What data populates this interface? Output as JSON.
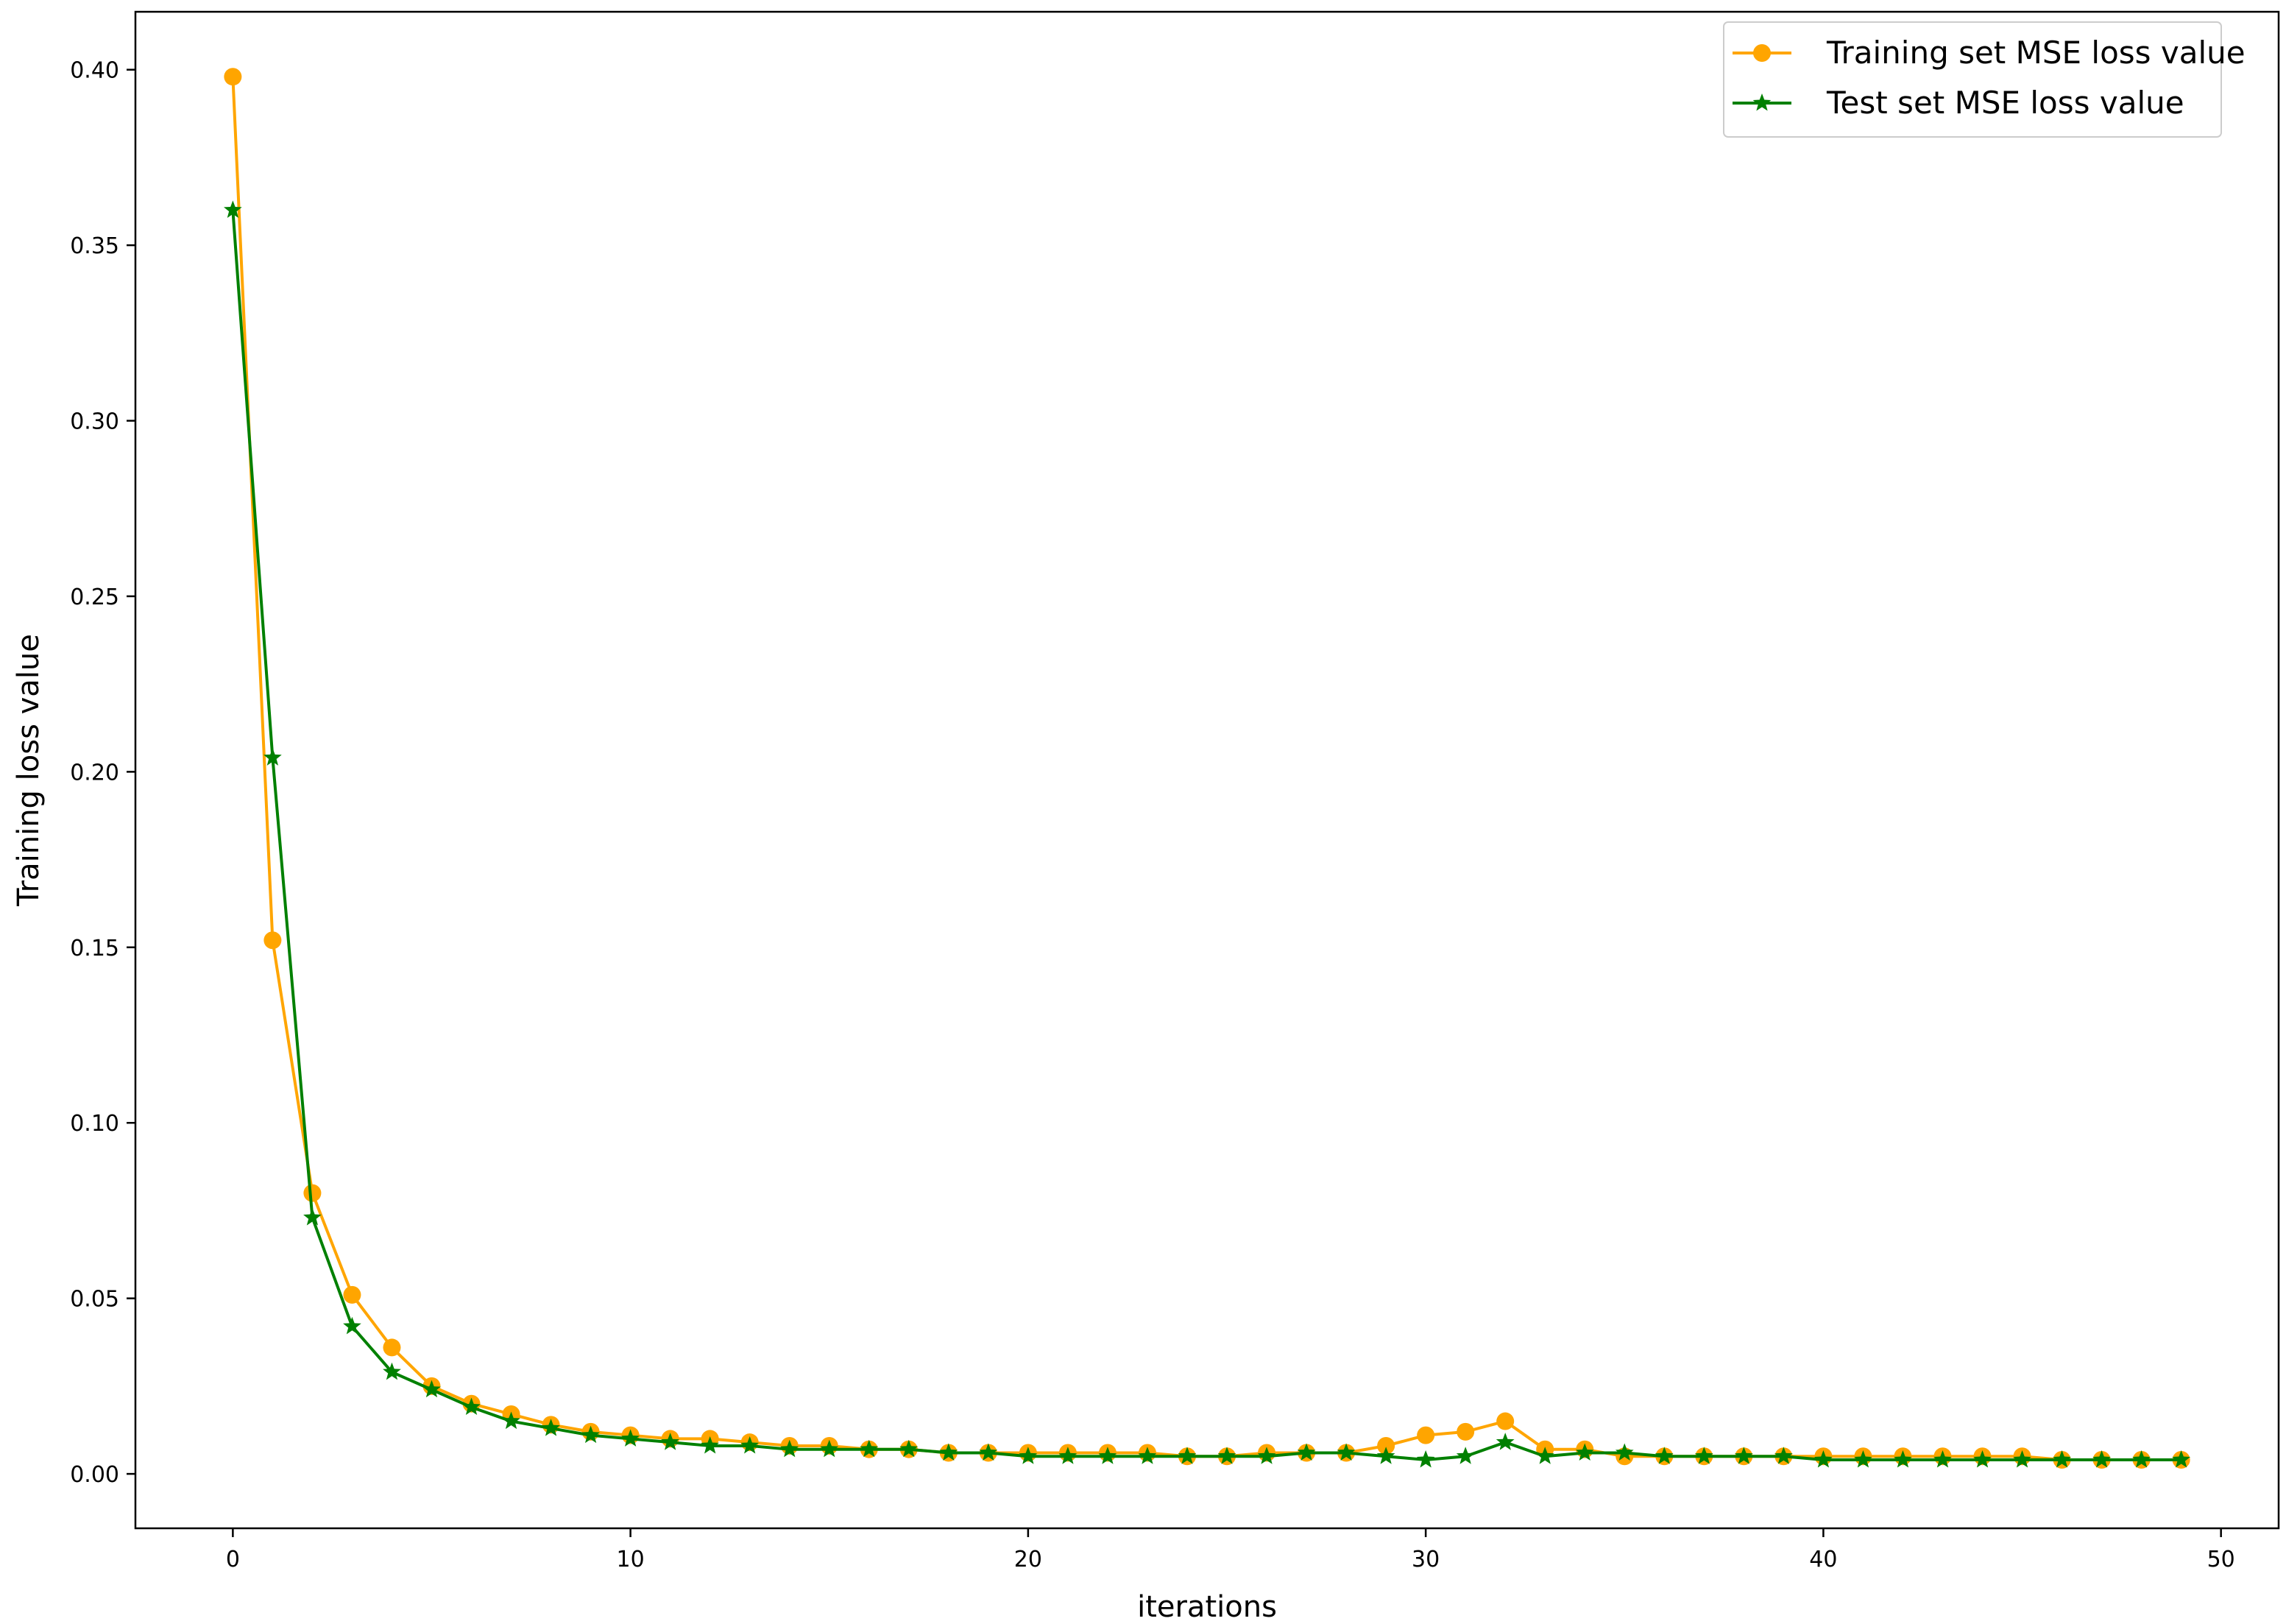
{
  "chart_data": {
    "type": "line",
    "title": "",
    "xlabel": "iterations",
    "ylabel": "Training loss value",
    "xlim": [
      -2.45,
      51.45
    ],
    "ylim": [
      -0.0155,
      0.4165
    ],
    "xticks": [
      0,
      10,
      20,
      30,
      40,
      50
    ],
    "yticks": [
      0.0,
      0.05,
      0.1,
      0.15,
      0.2,
      0.25,
      0.3,
      0.35,
      0.4
    ],
    "ytick_labels": [
      "0.00",
      "0.05",
      "0.10",
      "0.15",
      "0.20",
      "0.25",
      "0.30",
      "0.35",
      "0.40"
    ],
    "xtick_labels": [
      "0",
      "10",
      "20",
      "30",
      "40",
      "50"
    ],
    "grid": false,
    "legend_position": "top-right",
    "x": [
      0,
      1,
      2,
      3,
      4,
      5,
      6,
      7,
      8,
      9,
      10,
      11,
      12,
      13,
      14,
      15,
      16,
      17,
      18,
      19,
      20,
      21,
      22,
      23,
      24,
      25,
      26,
      27,
      28,
      29,
      30,
      31,
      32,
      33,
      34,
      35,
      36,
      37,
      38,
      39,
      40,
      41,
      42,
      43,
      44,
      45,
      46,
      47,
      48,
      49
    ],
    "series": [
      {
        "name": "Training set MSE loss value",
        "color": "#FFA500",
        "marker": "circle",
        "values": [
          0.398,
          0.152,
          0.08,
          0.051,
          0.036,
          0.025,
          0.02,
          0.017,
          0.014,
          0.012,
          0.011,
          0.01,
          0.01,
          0.009,
          0.008,
          0.008,
          0.007,
          0.007,
          0.006,
          0.006,
          0.006,
          0.006,
          0.006,
          0.006,
          0.005,
          0.005,
          0.006,
          0.006,
          0.006,
          0.008,
          0.011,
          0.012,
          0.015,
          0.007,
          0.007,
          0.005,
          0.005,
          0.005,
          0.005,
          0.005,
          0.005,
          0.005,
          0.005,
          0.005,
          0.005,
          0.005,
          0.004,
          0.004,
          0.004,
          0.004
        ]
      },
      {
        "name": "Test set MSE loss value",
        "color": "#008000",
        "marker": "star",
        "values": [
          0.36,
          0.204,
          0.073,
          0.042,
          0.029,
          0.024,
          0.019,
          0.015,
          0.013,
          0.011,
          0.01,
          0.009,
          0.008,
          0.008,
          0.007,
          0.007,
          0.007,
          0.007,
          0.006,
          0.006,
          0.005,
          0.005,
          0.005,
          0.005,
          0.005,
          0.005,
          0.005,
          0.006,
          0.006,
          0.005,
          0.004,
          0.005,
          0.009,
          0.005,
          0.006,
          0.006,
          0.005,
          0.005,
          0.005,
          0.005,
          0.004,
          0.004,
          0.004,
          0.004,
          0.004,
          0.004,
          0.004,
          0.004,
          0.004,
          0.004
        ]
      }
    ]
  }
}
